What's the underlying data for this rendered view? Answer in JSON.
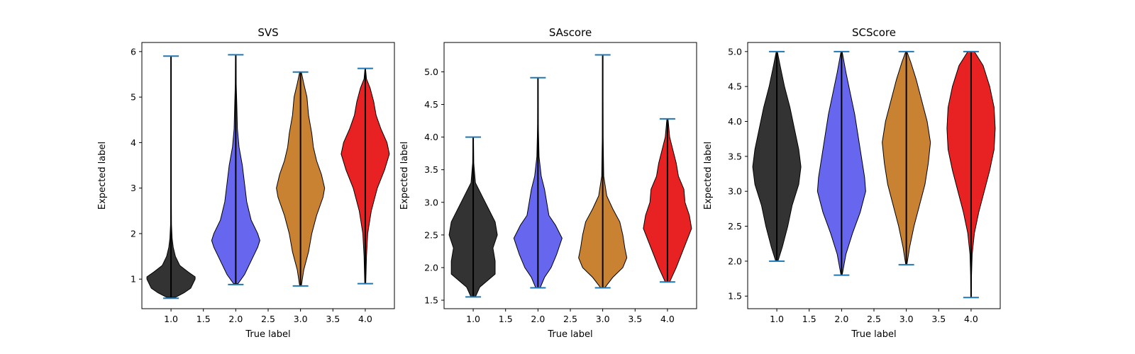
{
  "chart_data": [
    {
      "type": "violin",
      "title": "SVS",
      "xlabel": "True label",
      "ylabel": "Expected label",
      "xlim": [
        0.55,
        4.45
      ],
      "ylim": [
        0.35,
        6.2
      ],
      "xticks": [
        "1.0",
        "1.5",
        "2.0",
        "2.5",
        "3.0",
        "3.5",
        "4.0"
      ],
      "yticks": [
        "1",
        "2",
        "3",
        "4",
        "5",
        "6"
      ],
      "violins": [
        {
          "x": 1.0,
          "min": 0.58,
          "max": 5.9,
          "color": "#333333",
          "density": [
            [
              0.6,
              0.04
            ],
            [
              0.7,
              0.12
            ],
            [
              0.8,
              0.18
            ],
            [
              0.9,
              0.2
            ],
            [
              1.0,
              0.22
            ],
            [
              1.05,
              0.22
            ],
            [
              1.15,
              0.16
            ],
            [
              1.3,
              0.08
            ],
            [
              1.5,
              0.04
            ],
            [
              1.7,
              0.02
            ],
            [
              1.9,
              0.01
            ],
            [
              2.2,
              0.004
            ],
            [
              3.0,
              0.002
            ],
            [
              5.9,
              0.001
            ]
          ]
        },
        {
          "x": 2.0,
          "min": 0.88,
          "max": 5.93,
          "color": "#6666ee",
          "density": [
            [
              0.9,
              0.02
            ],
            [
              1.1,
              0.08
            ],
            [
              1.3,
              0.12
            ],
            [
              1.5,
              0.16
            ],
            [
              1.7,
              0.2
            ],
            [
              1.85,
              0.22
            ],
            [
              2.0,
              0.2
            ],
            [
              2.3,
              0.14
            ],
            [
              2.7,
              0.1
            ],
            [
              3.1,
              0.08
            ],
            [
              3.5,
              0.06
            ],
            [
              3.9,
              0.03
            ],
            [
              4.3,
              0.015
            ],
            [
              4.8,
              0.01
            ],
            [
              5.3,
              0.004
            ],
            [
              5.93,
              0.002
            ]
          ]
        },
        {
          "x": 3.0,
          "min": 0.85,
          "max": 5.55,
          "color": "#c98232",
          "density": [
            [
              0.85,
              0.005
            ],
            [
              1.2,
              0.02
            ],
            [
              1.6,
              0.05
            ],
            [
              2.0,
              0.07
            ],
            [
              2.4,
              0.1
            ],
            [
              2.8,
              0.14
            ],
            [
              3.0,
              0.15
            ],
            [
              3.3,
              0.13
            ],
            [
              3.6,
              0.1
            ],
            [
              3.9,
              0.08
            ],
            [
              4.2,
              0.07
            ],
            [
              4.6,
              0.05
            ],
            [
              5.0,
              0.04
            ],
            [
              5.3,
              0.02
            ],
            [
              5.55,
              0.005
            ]
          ]
        },
        {
          "x": 4.0,
          "min": 0.9,
          "max": 5.63,
          "color": "#e82222",
          "density": [
            [
              0.9,
              0.004
            ],
            [
              1.5,
              0.01
            ],
            [
              2.0,
              0.02
            ],
            [
              2.5,
              0.05
            ],
            [
              3.0,
              0.1
            ],
            [
              3.4,
              0.16
            ],
            [
              3.75,
              0.2
            ],
            [
              4.0,
              0.18
            ],
            [
              4.3,
              0.13
            ],
            [
              4.6,
              0.09
            ],
            [
              4.9,
              0.07
            ],
            [
              5.2,
              0.04
            ],
            [
              5.4,
              0.01
            ],
            [
              5.63,
              0.002
            ]
          ]
        }
      ]
    },
    {
      "type": "violin",
      "title": "SAscore",
      "xlabel": "True label",
      "ylabel": "Expected label",
      "xlim": [
        0.55,
        4.45
      ],
      "ylim": [
        1.37,
        5.45
      ],
      "xticks": [
        "1.0",
        "1.5",
        "2.0",
        "2.5",
        "3.0",
        "3.5",
        "4.0"
      ],
      "yticks": [
        "1.5",
        "2.0",
        "2.5",
        "3.0",
        "3.5",
        "4.0",
        "4.5",
        "5.0"
      ],
      "violins": [
        {
          "x": 1.0,
          "min": 1.55,
          "max": 4.0,
          "color": "#333333",
          "density": [
            [
              1.55,
              0.02
            ],
            [
              1.7,
              0.06
            ],
            [
              1.9,
              0.2
            ],
            [
              2.1,
              0.2
            ],
            [
              2.3,
              0.18
            ],
            [
              2.5,
              0.22
            ],
            [
              2.7,
              0.2
            ],
            [
              2.9,
              0.14
            ],
            [
              3.1,
              0.08
            ],
            [
              3.3,
              0.02
            ],
            [
              3.6,
              0.005
            ],
            [
              4.0,
              0.002
            ]
          ]
        },
        {
          "x": 2.0,
          "min": 1.69,
          "max": 4.91,
          "color": "#6666ee",
          "density": [
            [
              1.69,
              0.02
            ],
            [
              1.85,
              0.06
            ],
            [
              2.0,
              0.12
            ],
            [
              2.2,
              0.17
            ],
            [
              2.45,
              0.22
            ],
            [
              2.65,
              0.16
            ],
            [
              2.8,
              0.1
            ],
            [
              3.0,
              0.08
            ],
            [
              3.2,
              0.06
            ],
            [
              3.4,
              0.03
            ],
            [
              3.7,
              0.01
            ],
            [
              4.2,
              0.003
            ],
            [
              4.91,
              0.001
            ]
          ]
        },
        {
          "x": 3.0,
          "min": 1.69,
          "max": 5.26,
          "color": "#c98232",
          "density": [
            [
              1.69,
              0.02
            ],
            [
              1.85,
              0.1
            ],
            [
              2.0,
              0.2
            ],
            [
              2.15,
              0.24
            ],
            [
              2.3,
              0.22
            ],
            [
              2.5,
              0.2
            ],
            [
              2.7,
              0.17
            ],
            [
              2.9,
              0.1
            ],
            [
              3.1,
              0.04
            ],
            [
              3.4,
              0.01
            ],
            [
              4.0,
              0.004
            ],
            [
              5.26,
              0.001
            ]
          ]
        },
        {
          "x": 4.0,
          "min": 1.78,
          "max": 4.28,
          "color": "#e82222",
          "density": [
            [
              1.78,
              0.02
            ],
            [
              2.0,
              0.08
            ],
            [
              2.3,
              0.15
            ],
            [
              2.6,
              0.22
            ],
            [
              2.8,
              0.2
            ],
            [
              3.0,
              0.16
            ],
            [
              3.2,
              0.15
            ],
            [
              3.4,
              0.1
            ],
            [
              3.6,
              0.08
            ],
            [
              3.8,
              0.05
            ],
            [
              4.0,
              0.02
            ],
            [
              4.28,
              0.005
            ]
          ]
        }
      ]
    },
    {
      "type": "violin",
      "title": "SCScore",
      "xlabel": "True label",
      "ylabel": "Expected label",
      "xlim": [
        0.55,
        4.45
      ],
      "ylim": [
        1.32,
        5.13
      ],
      "xticks": [
        "1.0",
        "1.5",
        "2.0",
        "2.5",
        "3.0",
        "3.5",
        "4.0"
      ],
      "yticks": [
        "1.5",
        "2.0",
        "2.5",
        "3.0",
        "3.5",
        "4.0",
        "4.5",
        "5.0"
      ],
      "violins": [
        {
          "x": 1.0,
          "min": 2.0,
          "max": 5.0,
          "color": "#333333",
          "density": [
            [
              2.0,
              0.01
            ],
            [
              2.2,
              0.05
            ],
            [
              2.5,
              0.1
            ],
            [
              2.8,
              0.14
            ],
            [
              3.1,
              0.2
            ],
            [
              3.35,
              0.22
            ],
            [
              3.6,
              0.2
            ],
            [
              3.9,
              0.16
            ],
            [
              4.2,
              0.12
            ],
            [
              4.5,
              0.07
            ],
            [
              4.8,
              0.03
            ],
            [
              5.0,
              0.005
            ]
          ]
        },
        {
          "x": 2.0,
          "min": 1.8,
          "max": 5.0,
          "color": "#6666ee",
          "density": [
            [
              1.8,
              0.005
            ],
            [
              2.1,
              0.04
            ],
            [
              2.4,
              0.1
            ],
            [
              2.7,
              0.17
            ],
            [
              3.0,
              0.22
            ],
            [
              3.2,
              0.21
            ],
            [
              3.5,
              0.18
            ],
            [
              3.8,
              0.15
            ],
            [
              4.1,
              0.12
            ],
            [
              4.4,
              0.08
            ],
            [
              4.7,
              0.04
            ],
            [
              5.0,
              0.005
            ]
          ]
        },
        {
          "x": 3.0,
          "min": 1.95,
          "max": 5.0,
          "color": "#c98232",
          "density": [
            [
              1.95,
              0.005
            ],
            [
              2.2,
              0.03
            ],
            [
              2.5,
              0.07
            ],
            [
              2.8,
              0.12
            ],
            [
              3.1,
              0.17
            ],
            [
              3.4,
              0.2
            ],
            [
              3.7,
              0.22
            ],
            [
              4.0,
              0.19
            ],
            [
              4.3,
              0.14
            ],
            [
              4.6,
              0.09
            ],
            [
              4.85,
              0.04
            ],
            [
              5.0,
              0.005
            ]
          ]
        },
        {
          "x": 4.0,
          "min": 1.48,
          "max": 5.0,
          "color": "#e82222",
          "density": [
            [
              1.48,
              0.002
            ],
            [
              1.8,
              0.004
            ],
            [
              2.1,
              0.01
            ],
            [
              2.4,
              0.03
            ],
            [
              2.7,
              0.07
            ],
            [
              3.0,
              0.12
            ],
            [
              3.3,
              0.17
            ],
            [
              3.6,
              0.21
            ],
            [
              3.9,
              0.22
            ],
            [
              4.2,
              0.21
            ],
            [
              4.5,
              0.17
            ],
            [
              4.8,
              0.11
            ],
            [
              5.0,
              0.03
            ]
          ]
        }
      ]
    }
  ]
}
